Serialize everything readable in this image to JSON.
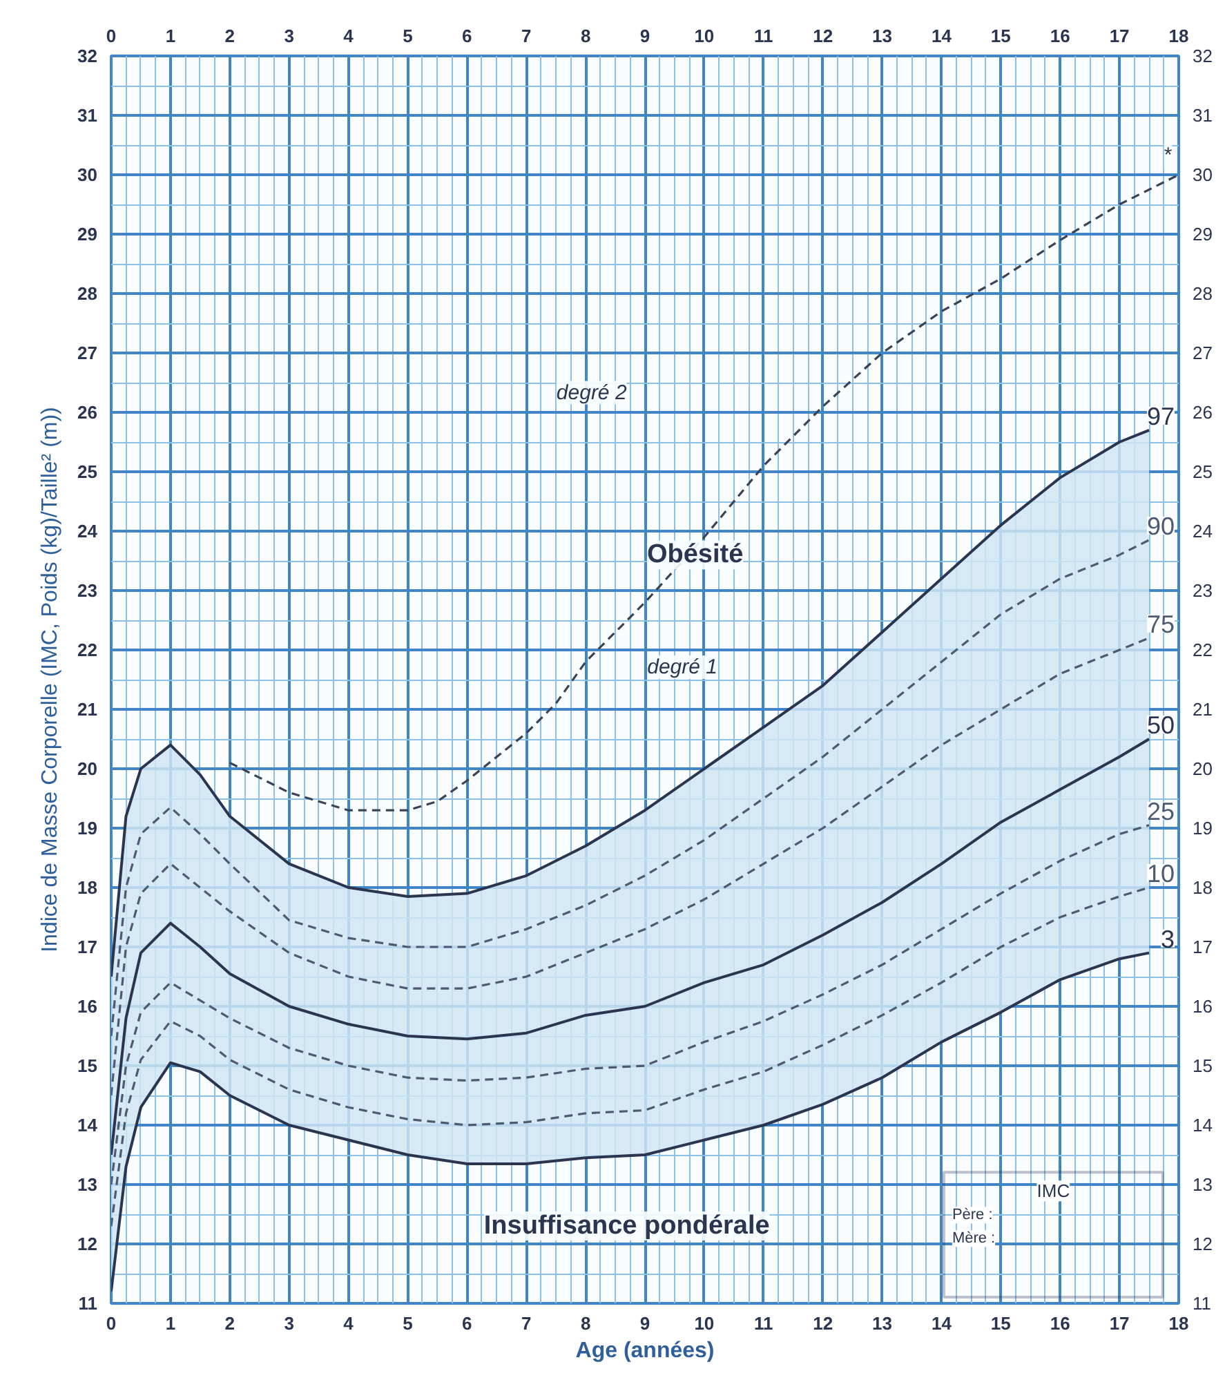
{
  "chart_data": {
    "type": "line",
    "xlabel": "Age (années)",
    "ylabel": "Indice de Masse Corporelle (IMC, Poids (kg)/Taille² (m))",
    "x": [
      0,
      0.25,
      0.5,
      1,
      1.5,
      2,
      3,
      4,
      5,
      6,
      7,
      8,
      9,
      10,
      11,
      12,
      13,
      14,
      15,
      16,
      17,
      17.5
    ],
    "series": [
      {
        "name": "97",
        "color": "#2b3550",
        "line_style": "solid",
        "values": [
          16.5,
          19.2,
          20.0,
          20.4,
          19.9,
          19.2,
          18.4,
          18.0,
          17.85,
          17.9,
          18.2,
          18.7,
          19.3,
          20.0,
          20.7,
          21.4,
          22.3,
          23.2,
          24.1,
          24.9,
          25.5,
          25.7
        ]
      },
      {
        "name": "90",
        "color": "#4d5a72",
        "line_style": "dashed",
        "values": [
          15.5,
          18.0,
          18.9,
          19.35,
          18.9,
          18.4,
          17.45,
          17.15,
          17.0,
          17.0,
          17.3,
          17.7,
          18.2,
          18.8,
          19.5,
          20.2,
          21.0,
          21.8,
          22.6,
          23.2,
          23.6,
          23.85
        ]
      },
      {
        "name": "75",
        "color": "#4d5a72",
        "line_style": "dashed",
        "values": [
          14.5,
          17.0,
          17.9,
          18.4,
          18.0,
          17.6,
          16.9,
          16.5,
          16.3,
          16.3,
          16.5,
          16.9,
          17.3,
          17.8,
          18.4,
          19.0,
          19.7,
          20.4,
          21.0,
          21.6,
          22.0,
          22.2
        ]
      },
      {
        "name": "50",
        "color": "#2b3550",
        "line_style": "solid",
        "values": [
          13.5,
          15.8,
          16.9,
          17.4,
          17.0,
          16.55,
          16.0,
          15.7,
          15.5,
          15.45,
          15.55,
          15.85,
          16.0,
          16.4,
          16.7,
          17.2,
          17.75,
          18.4,
          19.1,
          19.65,
          20.2,
          20.5
        ],
        "lower": [
          11.2,
          13.3,
          14.3,
          15.05,
          14.9,
          14.5,
          14.0,
          13.75,
          13.5,
          13.35,
          13.35,
          13.45,
          13.5,
          13.75,
          14.0,
          14.35,
          14.8,
          15.4,
          15.9,
          16.45,
          16.8,
          16.9
        ],
        "upper": [
          16.5,
          19.2,
          20.0,
          20.4,
          19.9,
          19.2,
          18.4,
          18.0,
          17.85,
          17.9,
          18.2,
          18.7,
          19.3,
          20.0,
          20.7,
          21.4,
          22.3,
          23.2,
          24.1,
          24.9,
          25.5,
          25.7
        ]
      },
      {
        "name": "25",
        "color": "#4d5a72",
        "line_style": "dashed",
        "values": [
          13.0,
          15.0,
          15.9,
          16.4,
          16.1,
          15.8,
          15.3,
          15.0,
          14.8,
          14.75,
          14.8,
          14.95,
          15.0,
          15.4,
          15.75,
          16.2,
          16.7,
          17.3,
          17.9,
          18.45,
          18.9,
          19.05
        ]
      },
      {
        "name": "10",
        "color": "#4d5a72",
        "line_style": "dashed",
        "values": [
          12.3,
          14.2,
          15.1,
          15.75,
          15.5,
          15.1,
          14.6,
          14.3,
          14.1,
          14.0,
          14.05,
          14.2,
          14.25,
          14.6,
          14.9,
          15.35,
          15.85,
          16.4,
          17.0,
          17.5,
          17.85,
          18.0
        ]
      },
      {
        "name": "3",
        "color": "#2b3550",
        "line_style": "solid",
        "values": [
          11.2,
          13.3,
          14.3,
          15.05,
          14.9,
          14.5,
          14.0,
          13.75,
          13.5,
          13.35,
          13.35,
          13.45,
          13.5,
          13.75,
          14.0,
          14.35,
          14.8,
          15.4,
          15.9,
          16.45,
          16.8,
          16.9
        ]
      },
      {
        "color": "#3a4256",
        "line_style": "dashed",
        "x": [
          2,
          3,
          4,
          5,
          5.5,
          6,
          7,
          7.5,
          8,
          9,
          10,
          11,
          12,
          13,
          14,
          15,
          16,
          17,
          18
        ],
        "values": [
          20.1,
          19.6,
          19.3,
          19.3,
          19.45,
          19.8,
          20.6,
          21.1,
          21.8,
          22.8,
          23.9,
          25.1,
          26.1,
          27.0,
          27.7,
          28.25,
          28.9,
          29.5,
          30.0
        ]
      }
    ],
    "marker": "none",
    "xlim": [
      0,
      18
    ],
    "xticks": [
      0,
      1,
      2,
      3,
      4,
      5,
      6,
      7,
      8,
      9,
      10,
      11,
      12,
      13,
      14,
      15,
      16,
      17,
      18
    ],
    "x2lim": [
      0,
      18
    ],
    "x2ticks": [
      0,
      1,
      2,
      3,
      4,
      5,
      6,
      7,
      8,
      9,
      10,
      11,
      12,
      13,
      14,
      15,
      16,
      17,
      18
    ],
    "ylim": [
      11,
      32
    ],
    "yticks": [
      11,
      12,
      13,
      14,
      15,
      16,
      17,
      18,
      19,
      20,
      21,
      22,
      23,
      24,
      25,
      26,
      27,
      28,
      29,
      30,
      31,
      32
    ],
    "y2lim": [
      11,
      32
    ],
    "y2ticks": [
      11,
      12,
      13,
      14,
      15,
      16,
      17,
      18,
      19,
      20,
      21,
      22,
      23,
      24,
      25,
      26,
      27,
      28,
      29,
      30,
      31,
      32
    ],
    "grid": true,
    "annotations": [
      "degré 2",
      "Obésité",
      "degré 1",
      "Insuffisance pondérale",
      "*",
      "IMC",
      "Père :",
      "Mère :"
    ]
  }
}
